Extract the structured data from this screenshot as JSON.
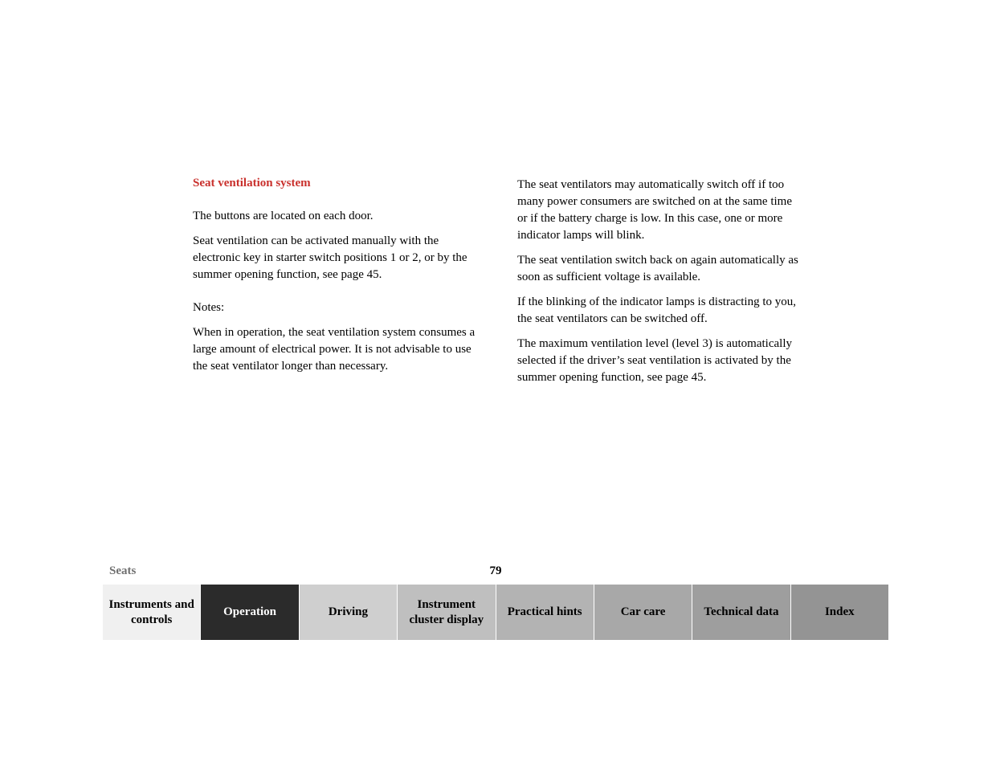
{
  "colors": {
    "heading": "#c9302c",
    "body": "#000000",
    "sectionName": "#707070",
    "tabText": "#000000",
    "activeTabText": "#ffffff",
    "tabBgs": [
      "#f0f0f0",
      "#2b2b2b",
      "#cfcfcf",
      "#bfbfbf",
      "#b3b3b3",
      "#a8a8a8",
      "#9e9e9e",
      "#949494"
    ]
  },
  "heading": "Seat ventilation system",
  "leftParas": [
    "The buttons are located on each door.",
    "Seat ventilation can be activated manually with the electronic key in starter switch positions 1 or 2, or by the summer opening function, see page 45."
  ],
  "notesLabel": "Notes:",
  "notesPara": "When in operation, the seat ventilation system consumes a large amount of electrical power. It is not advisable to use the seat ventilator longer than necessary.",
  "rightParas": [
    "The seat ventilators may automatically switch off if too many power consumers are switched on at the same time or if the battery charge is low. In this case, one or more indicator lamps will blink.",
    "The seat ventilation switch back on again automatically as soon as sufficient voltage is available.",
    "If the blinking of the indicator lamps is distracting to you, the seat ventilators can be switched off.",
    "The maximum ventilation level (level 3) is automatically selected if the driver’s seat ventilation is activated by the summer opening function, see page 45."
  ],
  "sectionName": "Seats",
  "pageNumber": "79",
  "tabs": [
    "Instruments and controls",
    "Operation",
    "Driving",
    "Instrument cluster display",
    "Practical hints",
    "Car care",
    "Technical data",
    "Index"
  ],
  "activeTabIndex": 1
}
